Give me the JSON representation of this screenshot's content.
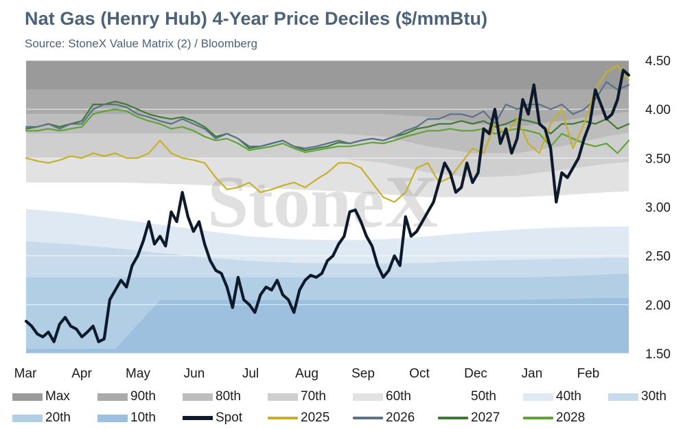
{
  "title": "Nat Gas (Henry Hub) 4-Year Price Deciles ($/mmBtu)",
  "subtitle": "Source: StoneX Value Matrix (2) / Bloomberg",
  "watermark": "StoneX",
  "chart_data": {
    "type": "line",
    "title": "Nat Gas (Henry Hub) 4-Year Price Deciles ($/mmBtu)",
    "xlabel": "",
    "ylabel": "",
    "x_tick_labels": [
      "Mar",
      "Apr",
      "May",
      "Jun",
      "Jul",
      "Aug",
      "Sep",
      "Oct",
      "Dec",
      "Jan",
      "Feb"
    ],
    "y_ticks": [
      "4.50",
      "4.00",
      "3.50",
      "3.00",
      "2.50",
      "2.00",
      "1.50"
    ],
    "ylim": [
      1.5,
      4.5
    ],
    "y_axis_side": "right",
    "grid": true,
    "legend_position": "bottom",
    "x_domain": [
      0,
      108
    ],
    "decile_bands": {
      "x": [
        0,
        8,
        16,
        24,
        33,
        40,
        48,
        56,
        64,
        72,
        80,
        88,
        96,
        104,
        108
      ],
      "10th": [
        1.55,
        1.55,
        1.55,
        2.05,
        2.05,
        2.05,
        2.05,
        2.05,
        2.05,
        2.05,
        2.05,
        2.05,
        2.06,
        2.07,
        2.07
      ],
      "20th": [
        2.28,
        2.28,
        2.28,
        2.28,
        2.28,
        2.28,
        2.28,
        2.28,
        2.28,
        2.28,
        2.28,
        2.28,
        2.29,
        2.31,
        2.32
      ],
      "30th": [
        2.65,
        2.62,
        2.58,
        2.53,
        2.48,
        2.45,
        2.43,
        2.42,
        2.42,
        2.43,
        2.45,
        2.46,
        2.47,
        2.48,
        2.48
      ],
      "40th": [
        2.98,
        2.94,
        2.88,
        2.82,
        2.75,
        2.7,
        2.67,
        2.66,
        2.67,
        2.7,
        2.74,
        2.77,
        2.79,
        2.8,
        2.8
      ],
      "50th": [
        3.25,
        3.25,
        3.25,
        3.24,
        3.22,
        3.2,
        3.18,
        3.16,
        3.13,
        3.1,
        3.1,
        3.1,
        3.12,
        3.15,
        3.16
      ],
      "60th": [
        3.5,
        3.5,
        3.5,
        3.5,
        3.5,
        3.5,
        3.5,
        3.5,
        3.45,
        3.35,
        3.3,
        3.32,
        3.38,
        3.44,
        3.46
      ],
      "70th": [
        3.75,
        3.75,
        3.75,
        3.75,
        3.75,
        3.75,
        3.75,
        3.75,
        3.72,
        3.62,
        3.55,
        3.55,
        3.62,
        3.72,
        3.76
      ],
      "80th": [
        3.95,
        3.95,
        3.95,
        3.95,
        3.95,
        3.95,
        3.95,
        3.95,
        3.95,
        3.92,
        3.85,
        3.82,
        3.88,
        3.95,
        3.97
      ],
      "90th": [
        4.2,
        4.2,
        4.2,
        4.2,
        4.2,
        4.2,
        4.2,
        4.2,
        4.2,
        4.2,
        4.2,
        4.2,
        4.2,
        4.2,
        4.2
      ],
      "Max": [
        4.5,
        4.5,
        4.5,
        4.5,
        4.5,
        4.5,
        4.5,
        4.5,
        4.5,
        4.5,
        4.5,
        4.5,
        4.5,
        4.5,
        4.5
      ]
    },
    "series": [
      {
        "name": "Spot",
        "color": "#0c1a2b",
        "x": [
          0,
          1,
          2,
          3,
          4,
          5,
          6,
          7,
          8,
          9,
          10,
          11,
          12,
          13,
          14,
          15,
          16,
          17,
          18,
          19,
          20,
          21,
          22,
          23,
          24,
          25,
          26,
          27,
          28,
          29,
          30,
          31,
          32,
          33,
          34,
          35,
          36,
          37,
          38,
          39,
          40,
          41,
          42,
          43,
          44,
          45,
          46,
          47,
          48,
          49,
          50,
          51,
          52,
          53,
          54,
          55,
          56,
          57,
          58,
          59,
          60,
          61,
          62,
          63,
          64,
          65,
          66,
          67,
          68,
          69,
          70,
          71,
          72,
          73,
          74,
          75,
          76,
          77,
          78,
          79,
          80,
          81,
          82,
          83,
          84,
          85,
          86,
          87,
          88,
          89,
          90,
          91,
          92,
          93,
          94,
          95,
          96,
          97,
          98,
          99,
          100,
          101,
          102,
          103,
          104,
          105,
          106,
          107,
          108
        ],
        "values": [
          1.83,
          1.78,
          1.7,
          1.67,
          1.72,
          1.62,
          1.8,
          1.87,
          1.78,
          1.75,
          1.67,
          1.72,
          1.78,
          1.62,
          1.65,
          2.05,
          2.15,
          2.25,
          2.18,
          2.4,
          2.5,
          2.65,
          2.85,
          2.62,
          2.7,
          2.6,
          2.95,
          2.85,
          3.15,
          2.9,
          2.75,
          2.85,
          2.62,
          2.45,
          2.35,
          2.32,
          2.18,
          1.97,
          2.28,
          2.05,
          2.0,
          1.92,
          2.1,
          2.18,
          2.15,
          2.25,
          2.1,
          2.05,
          1.92,
          2.15,
          2.25,
          2.3,
          2.28,
          2.32,
          2.45,
          2.5,
          2.62,
          2.7,
          2.95,
          2.97,
          2.85,
          2.7,
          2.6,
          2.4,
          2.28,
          2.35,
          2.5,
          2.4,
          2.9,
          2.7,
          2.75,
          2.85,
          2.95,
          3.05,
          3.25,
          3.45,
          3.35,
          3.15,
          3.2,
          3.45,
          3.25,
          3.35,
          3.8,
          3.75,
          4.0,
          3.65,
          3.8,
          3.55,
          3.7,
          4.1,
          3.95,
          4.25,
          3.85,
          3.8,
          3.6,
          3.05,
          3.35,
          3.3,
          3.4,
          3.5,
          3.7,
          3.85,
          4.2,
          4.05,
          3.9,
          3.95,
          4.1,
          4.4,
          4.35
        ]
      },
      {
        "name": "2025",
        "color": "#c6b02a",
        "x": [
          0,
          2,
          4,
          6,
          8,
          10,
          12,
          14,
          16,
          18,
          20,
          22,
          24,
          26,
          28,
          30,
          32,
          34,
          36,
          38,
          40,
          42,
          44,
          46,
          48,
          50,
          52,
          54,
          56,
          58,
          60,
          62,
          64,
          66,
          68,
          70,
          72,
          74,
          76,
          78,
          80,
          82,
          84,
          86,
          88,
          90,
          92,
          94,
          96,
          98,
          100,
          102,
          104,
          106,
          108
        ],
        "values": [
          3.5,
          3.47,
          3.45,
          3.48,
          3.52,
          3.5,
          3.55,
          3.52,
          3.55,
          3.5,
          3.5,
          3.55,
          3.68,
          3.55,
          3.5,
          3.48,
          3.45,
          3.3,
          3.18,
          3.2,
          3.25,
          3.15,
          3.18,
          3.22,
          3.25,
          3.2,
          3.28,
          3.35,
          3.45,
          3.45,
          3.4,
          3.25,
          3.1,
          3.05,
          3.15,
          3.4,
          3.45,
          3.25,
          3.3,
          3.45,
          3.6,
          3.55,
          3.85,
          3.75,
          3.9,
          3.65,
          3.55,
          3.85,
          4.0,
          3.6,
          3.85,
          4.2,
          4.38,
          4.45,
          4.3
        ]
      },
      {
        "name": "2026",
        "color": "#5a7288",
        "x": [
          0,
          2,
          4,
          6,
          8,
          10,
          12,
          14,
          16,
          18,
          20,
          22,
          24,
          26,
          28,
          30,
          32,
          34,
          36,
          38,
          40,
          42,
          44,
          46,
          48,
          50,
          52,
          54,
          56,
          58,
          60,
          62,
          64,
          66,
          68,
          70,
          72,
          74,
          76,
          78,
          80,
          82,
          84,
          86,
          88,
          90,
          92,
          94,
          96,
          98,
          100,
          102,
          104,
          106,
          108
        ],
        "values": [
          3.82,
          3.82,
          3.85,
          3.8,
          3.85,
          3.85,
          4.0,
          4.05,
          4.05,
          4.02,
          3.95,
          3.92,
          3.88,
          3.85,
          3.9,
          3.85,
          3.8,
          3.7,
          3.75,
          3.7,
          3.62,
          3.62,
          3.65,
          3.68,
          3.62,
          3.6,
          3.62,
          3.65,
          3.68,
          3.65,
          3.68,
          3.7,
          3.68,
          3.72,
          3.78,
          3.82,
          3.9,
          3.9,
          3.95,
          3.95,
          3.92,
          3.98,
          3.85,
          4.05,
          4.0,
          4.05,
          4.05,
          4.0,
          4.05,
          3.95,
          4.0,
          4.1,
          4.28,
          4.2,
          4.25
        ]
      },
      {
        "name": "2027",
        "color": "#3d7a32",
        "x": [
          0,
          2,
          4,
          6,
          8,
          10,
          12,
          14,
          16,
          18,
          20,
          22,
          24,
          26,
          28,
          30,
          32,
          34,
          36,
          38,
          40,
          42,
          44,
          46,
          48,
          50,
          52,
          54,
          56,
          58,
          60,
          62,
          64,
          66,
          68,
          70,
          72,
          74,
          76,
          78,
          80,
          82,
          84,
          86,
          88,
          90,
          92,
          94,
          96,
          98,
          100,
          102,
          104,
          106,
          108
        ],
        "values": [
          3.8,
          3.82,
          3.85,
          3.82,
          3.85,
          3.88,
          4.05,
          4.05,
          4.08,
          4.05,
          4.0,
          3.95,
          3.92,
          3.9,
          3.92,
          3.88,
          3.82,
          3.72,
          3.75,
          3.7,
          3.6,
          3.62,
          3.65,
          3.68,
          3.62,
          3.58,
          3.6,
          3.62,
          3.66,
          3.65,
          3.68,
          3.7,
          3.68,
          3.72,
          3.75,
          3.8,
          3.82,
          3.85,
          3.85,
          3.88,
          3.85,
          3.88,
          3.82,
          3.85,
          3.9,
          3.88,
          3.85,
          3.75,
          3.85,
          3.85,
          3.88,
          3.85,
          3.9,
          3.8,
          3.85
        ]
      },
      {
        "name": "2028",
        "color": "#5fa336",
        "x": [
          0,
          2,
          4,
          6,
          8,
          10,
          12,
          14,
          16,
          18,
          20,
          22,
          24,
          26,
          28,
          30,
          32,
          34,
          36,
          38,
          40,
          42,
          44,
          46,
          48,
          50,
          52,
          54,
          56,
          58,
          60,
          62,
          64,
          66,
          68,
          70,
          72,
          74,
          76,
          78,
          80,
          82,
          84,
          86,
          88,
          90,
          92,
          94,
          96,
          98,
          100,
          102,
          104,
          106,
          108
        ],
        "values": [
          3.78,
          3.78,
          3.8,
          3.78,
          3.8,
          3.82,
          3.95,
          3.98,
          4.0,
          3.98,
          3.92,
          3.88,
          3.85,
          3.8,
          3.82,
          3.78,
          3.72,
          3.68,
          3.7,
          3.65,
          3.58,
          3.6,
          3.62,
          3.65,
          3.6,
          3.56,
          3.58,
          3.6,
          3.62,
          3.62,
          3.64,
          3.66,
          3.65,
          3.68,
          3.72,
          3.75,
          3.78,
          3.78,
          3.8,
          3.78,
          3.78,
          3.8,
          3.75,
          3.78,
          3.8,
          3.78,
          3.75,
          3.62,
          3.75,
          3.7,
          3.65,
          3.62,
          3.65,
          3.55,
          3.68
        ]
      }
    ]
  },
  "legend": [
    {
      "label": "Max",
      "color": "#9a9a9a",
      "kind": "band"
    },
    {
      "label": "90th",
      "color": "#aaaaaa",
      "kind": "band"
    },
    {
      "label": "80th",
      "color": "#bdbdbd",
      "kind": "band"
    },
    {
      "label": "70th",
      "color": "#cfcfcf",
      "kind": "band"
    },
    {
      "label": "60th",
      "color": "#e2e2e2",
      "kind": "band"
    },
    {
      "label": "50th",
      "color": "#ffffff",
      "kind": "band"
    },
    {
      "label": "40th",
      "color": "#dfe9f3",
      "kind": "band"
    },
    {
      "label": "30th",
      "color": "#c7dbec",
      "kind": "band"
    },
    {
      "label": "20th",
      "color": "#b2cee5",
      "kind": "band"
    },
    {
      "label": "10th",
      "color": "#9cc0de",
      "kind": "band"
    },
    {
      "label": "Spot",
      "color": "#0c1a2b",
      "kind": "spot"
    },
    {
      "label": "2025",
      "color": "#c6b02a",
      "kind": "line"
    },
    {
      "label": "2026",
      "color": "#5a7288",
      "kind": "line"
    },
    {
      "label": "2027",
      "color": "#3d7a32",
      "kind": "line"
    },
    {
      "label": "2028",
      "color": "#5fa336",
      "kind": "line"
    }
  ]
}
